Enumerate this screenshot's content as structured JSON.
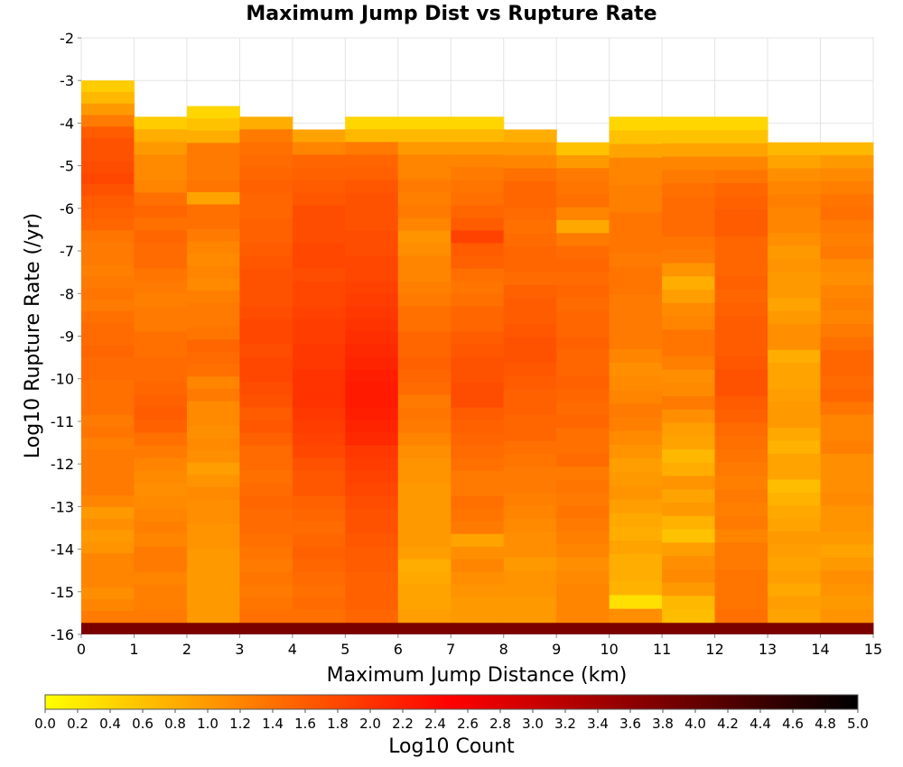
{
  "chart_data": {
    "type": "heatmap",
    "title": "Maximum Jump Dist vs Rupture Rate",
    "xlabel": "Maximum Jump Distance (km)",
    "ylabel": "Log10 Rupture Rate (/yr)",
    "colorbar_label": "Log10 Count",
    "xlim": [
      0,
      15
    ],
    "ylim": [
      -16,
      -2
    ],
    "x_ticks": [
      "0",
      "1",
      "2",
      "3",
      "4",
      "5",
      "6",
      "7",
      "8",
      "9",
      "10",
      "11",
      "12",
      "13",
      "14",
      "15"
    ],
    "y_ticks": [
      "-2",
      "-3",
      "-4",
      "-5",
      "-6",
      "-7",
      "-8",
      "-9",
      "-10",
      "-11",
      "-12",
      "-13",
      "-14",
      "-15",
      "-16"
    ],
    "colorbar_range": [
      0,
      5
    ],
    "colorbar_ticks": [
      "0.0",
      "0.2",
      "0.4",
      "0.6",
      "0.8",
      "1.0",
      "1.2",
      "1.4",
      "1.6",
      "1.8",
      "2.0",
      "2.2",
      "2.4",
      "2.6",
      "2.8",
      "3.0",
      "3.2",
      "3.4",
      "3.6",
      "3.8",
      "4.0",
      "4.2",
      "4.4",
      "4.6",
      "4.8",
      "5.0"
    ],
    "colormap": [
      "#ffff00",
      "#ff0000",
      "#000000"
    ],
    "grid": true,
    "x_bin_width": 1,
    "y_bin_width": 0.28,
    "columns": [
      {
        "x": 0.5,
        "top": -3.0,
        "bottom_row_value": 3.8,
        "values": [
          0.5,
          0.7,
          1.0,
          1.3,
          1.6,
          1.7,
          1.7,
          1.75,
          1.8,
          1.7,
          1.6,
          1.55,
          1.5,
          1.35,
          1.3,
          1.3,
          1.25,
          1.3,
          1.35,
          1.3,
          1.4,
          1.45,
          1.45,
          1.5,
          1.45,
          1.45,
          1.4,
          1.4,
          1.4,
          1.3,
          1.35,
          1.25,
          1.3,
          1.3,
          1.3,
          1.3,
          1.2,
          1.0,
          1.1,
          1.0,
          1.05,
          1.2,
          1.2,
          1.2,
          1.1,
          1.2,
          1.3
        ]
      },
      {
        "x": 1.5,
        "top": -3.85,
        "bottom_row_value": 3.8,
        "values": [
          0.5,
          0.8,
          1.0,
          1.15,
          1.15,
          1.2,
          1.4,
          1.5,
          1.4,
          1.5,
          1.45,
          1.45,
          1.35,
          1.3,
          1.25,
          1.3,
          1.3,
          1.4,
          1.4,
          1.45,
          1.45,
          1.5,
          1.55,
          1.6,
          1.55,
          1.4,
          1.3,
          1.2,
          1.15,
          1.1,
          1.15,
          1.2,
          1.25,
          1.2,
          1.3,
          1.3,
          1.2,
          1.25,
          1.25,
          1.3
        ]
      },
      {
        "x": 2.5,
        "top": -3.6,
        "bottom_row_value": 3.8,
        "values": [
          0.4,
          0.6,
          0.8,
          1.3,
          1.3,
          1.3,
          1.35,
          0.9,
          1.4,
          1.4,
          1.3,
          1.2,
          1.15,
          1.2,
          1.15,
          1.25,
          1.3,
          1.3,
          1.35,
          1.5,
          1.45,
          1.4,
          1.2,
          1.3,
          1.15,
          1.15,
          1.1,
          1.15,
          1.1,
          0.95,
          1.05,
          1.15,
          1.1,
          1.1,
          1.05,
          1.05,
          1.0,
          1.0,
          1.0,
          1.0,
          1.0,
          1.0
        ]
      },
      {
        "x": 3.5,
        "top": -3.85,
        "bottom_row_value": 3.8,
        "values": [
          0.8,
          1.3,
          1.4,
          1.45,
          1.5,
          1.55,
          1.5,
          1.5,
          1.55,
          1.55,
          1.6,
          1.65,
          1.7,
          1.7,
          1.7,
          1.75,
          1.8,
          1.8,
          1.75,
          1.8,
          1.8,
          1.75,
          1.7,
          1.6,
          1.65,
          1.55,
          1.45,
          1.45,
          1.4,
          1.45,
          1.5,
          1.45,
          1.45,
          1.4,
          1.35,
          1.3,
          1.35,
          1.3,
          1.35,
          1.4
        ]
      },
      {
        "x": 4.5,
        "top": -4.15,
        "bottom_row_value": 3.8,
        "values": [
          0.9,
          1.2,
          1.5,
          1.55,
          1.6,
          1.65,
          1.75,
          1.75,
          1.75,
          1.8,
          1.8,
          1.75,
          1.8,
          1.8,
          1.85,
          1.9,
          1.9,
          1.95,
          1.95,
          2.0,
          2.0,
          2.0,
          1.95,
          1.9,
          1.85,
          1.8,
          1.7,
          1.65,
          1.65,
          1.55,
          1.5,
          1.45,
          1.5,
          1.55,
          1.5,
          1.45,
          1.4,
          1.45,
          1.4
        ]
      },
      {
        "x": 5.5,
        "top": -3.85,
        "bottom_row_value": 3.8,
        "values": [
          0.4,
          0.7,
          1.3,
          1.5,
          1.55,
          1.65,
          1.7,
          1.7,
          1.7,
          1.75,
          1.75,
          1.8,
          1.8,
          1.85,
          1.9,
          1.95,
          2.0,
          2.05,
          2.1,
          2.15,
          2.2,
          2.25,
          2.25,
          2.2,
          2.15,
          2.1,
          1.95,
          1.9,
          1.85,
          1.8,
          1.75,
          1.7,
          1.7,
          1.65,
          1.6,
          1.6,
          1.55,
          1.55,
          1.55,
          1.5
        ]
      },
      {
        "x": 6.5,
        "top": -3.85,
        "bottom_row_value": 3.8,
        "values": [
          0.4,
          0.7,
          1.0,
          1.2,
          1.2,
          1.3,
          1.25,
          1.3,
          1.2,
          1.05,
          1.1,
          1.2,
          1.2,
          1.25,
          1.3,
          1.4,
          1.4,
          1.5,
          1.5,
          1.55,
          1.5,
          1.45,
          1.3,
          1.35,
          1.3,
          1.2,
          1.1,
          1.05,
          1.05,
          1.0,
          1.0,
          1.0,
          1.0,
          1.0,
          0.95,
          0.8,
          0.85,
          0.9,
          0.9,
          0.95
        ]
      },
      {
        "x": 7.5,
        "top": -3.85,
        "bottom_row_value": 3.8,
        "values": [
          0.4,
          0.7,
          1.0,
          1.2,
          1.3,
          1.35,
          1.4,
          1.5,
          1.6,
          1.85,
          1.6,
          1.55,
          1.4,
          1.35,
          1.4,
          1.5,
          1.5,
          1.6,
          1.65,
          1.7,
          1.7,
          1.75,
          1.75,
          1.6,
          1.55,
          1.5,
          1.45,
          1.4,
          1.3,
          1.3,
          1.4,
          1.35,
          1.3,
          0.9,
          1.1,
          1.2,
          1.1,
          1.05,
          1.0,
          1.0
        ]
      },
      {
        "x": 8.5,
        "top": -4.15,
        "bottom_row_value": 3.8,
        "values": [
          0.8,
          1.0,
          1.2,
          1.4,
          1.5,
          1.5,
          1.45,
          1.4,
          1.45,
          1.5,
          1.5,
          1.45,
          1.55,
          1.6,
          1.6,
          1.65,
          1.7,
          1.7,
          1.65,
          1.6,
          1.55,
          1.55,
          1.5,
          1.5,
          1.4,
          1.35,
          1.3,
          1.3,
          1.25,
          1.2,
          1.15,
          1.1,
          1.1,
          1.0,
          1.05,
          1.05,
          1.0,
          1.0
        ]
      },
      {
        "x": 9.5,
        "top": -4.45,
        "bottom_row_value": 3.8,
        "values": [
          0.6,
          1.0,
          1.3,
          1.35,
          1.4,
          1.2,
          0.85,
          1.3,
          1.45,
          1.5,
          1.45,
          1.5,
          1.45,
          1.5,
          1.5,
          1.55,
          1.5,
          1.5,
          1.55,
          1.5,
          1.45,
          1.5,
          1.4,
          1.4,
          1.45,
          1.3,
          1.35,
          1.3,
          1.35,
          1.3,
          1.25,
          1.2,
          1.1,
          1.15,
          1.2,
          1.2,
          1.2
        ]
      },
      {
        "x": 10.5,
        "top": -3.85,
        "bottom_row_value": 3.8,
        "values": [
          0.4,
          0.6,
          0.9,
          1.2,
          1.2,
          1.25,
          1.25,
          1.35,
          1.35,
          1.35,
          1.3,
          1.35,
          1.35,
          1.3,
          1.3,
          1.3,
          1.3,
          1.2,
          1.1,
          1.15,
          1.2,
          1.3,
          1.25,
          1.15,
          1.05,
          0.95,
          1.0,
          1.05,
          0.95,
          0.85,
          0.8,
          0.9,
          0.8,
          0.8,
          0.75,
          0.3,
          1.1
        ]
      },
      {
        "x": 11.5,
        "top": -3.85,
        "bottom_row_value": 3.8,
        "values": [
          0.4,
          0.6,
          0.9,
          1.2,
          1.3,
          1.4,
          1.45,
          1.45,
          1.45,
          1.35,
          1.3,
          1.05,
          0.8,
          0.95,
          1.15,
          1.2,
          1.35,
          1.35,
          1.25,
          1.1,
          1.15,
          1.3,
          1.1,
          0.95,
          0.9,
          0.7,
          0.8,
          1.05,
          0.9,
          1.0,
          0.75,
          0.6,
          0.95,
          1.1,
          1.15,
          1.0,
          0.7,
          0.65
        ]
      },
      {
        "x": 12.5,
        "top": -3.85,
        "bottom_row_value": 3.8,
        "values": [
          0.4,
          0.6,
          0.9,
          1.2,
          1.35,
          1.5,
          1.55,
          1.6,
          1.6,
          1.5,
          1.5,
          1.5,
          1.55,
          1.5,
          1.55,
          1.6,
          1.6,
          1.6,
          1.65,
          1.7,
          1.7,
          1.6,
          1.55,
          1.45,
          1.4,
          1.35,
          1.3,
          1.25,
          1.3,
          1.25,
          1.3,
          1.2,
          1.3,
          1.3,
          1.35,
          1.35,
          1.35,
          1.4
        ]
      },
      {
        "x": 13.5,
        "top": -4.45,
        "bottom_row_value": 3.8,
        "values": [
          0.7,
          0.9,
          1.1,
          1.2,
          1.25,
          1.2,
          1.2,
          1.1,
          1.0,
          1.05,
          1.0,
          1.0,
          0.9,
          1.0,
          1.1,
          1.1,
          0.8,
          0.9,
          0.9,
          0.95,
          1.0,
          1.0,
          0.85,
          0.75,
          0.9,
          0.9,
          0.65,
          0.75,
          0.85,
          0.9,
          1.0,
          0.95,
          0.9,
          0.95,
          0.85,
          0.95,
          0.9
        ]
      },
      {
        "x": 14.5,
        "top": -4.45,
        "bottom_row_value": 3.8,
        "values": [
          0.7,
          1.0,
          1.15,
          1.25,
          1.35,
          1.4,
          1.3,
          1.25,
          1.3,
          1.15,
          1.1,
          1.2,
          1.25,
          1.2,
          1.3,
          1.4,
          1.5,
          1.5,
          1.45,
          1.5,
          1.35,
          1.2,
          1.2,
          1.25,
          1.1,
          1.1,
          1.1,
          1.15,
          1.05,
          1.05,
          1.0,
          0.9,
          1.0,
          1.1,
          1.05,
          1.0,
          1.05
        ]
      }
    ]
  }
}
